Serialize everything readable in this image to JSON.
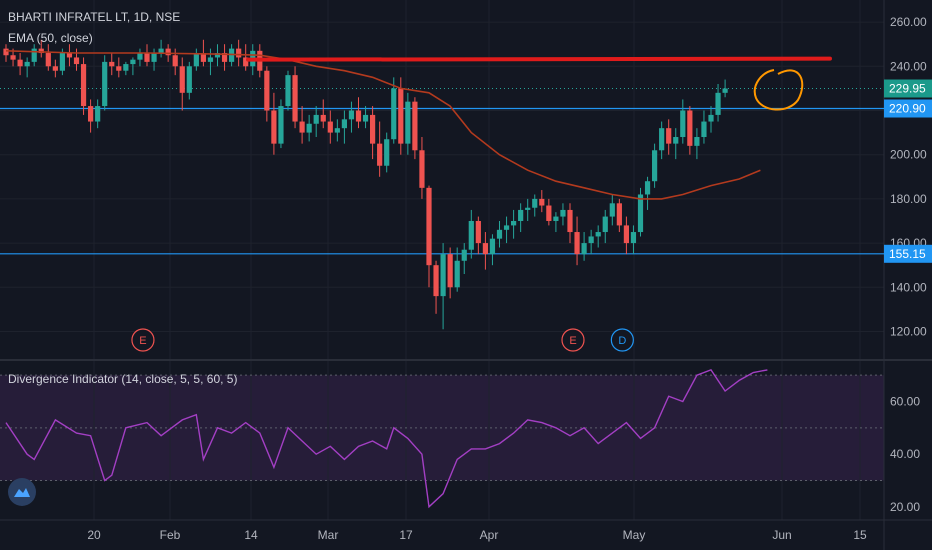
{
  "header": {
    "symbol_title": "BHARTI INFRATEL LT, 1D, NSE",
    "ema_label": "EMA (50, close)",
    "indicator_label": "Divergence Indicator (14, close, 5, 5, 60, 5)"
  },
  "colors": {
    "background": "#131722",
    "up_candle": "#26a69a",
    "down_candle": "#ef5350",
    "ema_line": "#b33a1e",
    "resistance_line": "#e01b1b",
    "horizontal_line": "#2196f3",
    "highlight_circle": "#ff9800",
    "rsi_line": "#a33fc4",
    "rsi_band": "#2a1e3d",
    "earnings_badge": "#ef5350",
    "dividend_badge": "#2196f3",
    "price_badge_last": "#1b9a8b",
    "price_badge_line": "#2196f3"
  },
  "price_axis": {
    "ticks": [
      "260.00",
      "240.00",
      "220.00",
      "200.00",
      "180.00",
      "160.00",
      "140.00",
      "120.00"
    ]
  },
  "price_badges": [
    {
      "label": "229.95",
      "value": 229.95,
      "style": "last"
    },
    {
      "label": "220.90",
      "value": 220.9,
      "style": "line"
    },
    {
      "label": "155.15",
      "value": 155.15,
      "style": "line"
    }
  ],
  "indicator_axis": {
    "ticks": [
      "60.00",
      "40.00",
      "20.00"
    ]
  },
  "time_axis": {
    "labels": [
      "20",
      "Feb",
      "14",
      "Mar",
      "17",
      "Apr",
      "May",
      "Jun",
      "15"
    ]
  },
  "events": [
    {
      "label": "E",
      "type": "earnings",
      "date_index": 19
    },
    {
      "label": "E",
      "type": "earnings",
      "date_index": 80
    },
    {
      "label": "D",
      "type": "dividend",
      "date_index": 87
    }
  ],
  "drawings": {
    "resistance_level": 243,
    "horizontal_lines": [
      220.9,
      155.15
    ]
  },
  "chart_data": {
    "type": "candlestick",
    "title": "BHARTI INFRATEL LT, 1D, NSE",
    "xlabel": "",
    "ylabel": "",
    "ylim": [
      108,
      270
    ],
    "indicator_ylim": [
      15,
      75
    ],
    "indicator_levels": [
      70,
      50,
      30
    ],
    "candles": [
      [
        248,
        250,
        242,
        245
      ],
      [
        245,
        248,
        240,
        243
      ],
      [
        243,
        246,
        236,
        240
      ],
      [
        240,
        244,
        235,
        242
      ],
      [
        242,
        250,
        240,
        248
      ],
      [
        248,
        252,
        244,
        246
      ],
      [
        246,
        250,
        238,
        240
      ],
      [
        240,
        243,
        235,
        238
      ],
      [
        238,
        248,
        236,
        246
      ],
      [
        246,
        250,
        240,
        244
      ],
      [
        244,
        248,
        238,
        241
      ],
      [
        241,
        244,
        218,
        222
      ],
      [
        222,
        225,
        210,
        215
      ],
      [
        215,
        225,
        212,
        222
      ],
      [
        222,
        245,
        220,
        242
      ],
      [
        242,
        246,
        236,
        240
      ],
      [
        240,
        244,
        235,
        238
      ],
      [
        238,
        242,
        236,
        241
      ],
      [
        241,
        244,
        236,
        243
      ],
      [
        243,
        248,
        240,
        246
      ],
      [
        246,
        250,
        240,
        242
      ],
      [
        242,
        248,
        238,
        246
      ],
      [
        246,
        252,
        244,
        248
      ],
      [
        248,
        250,
        242,
        245
      ],
      [
        245,
        248,
        236,
        240
      ],
      [
        240,
        244,
        220,
        228
      ],
      [
        228,
        242,
        225,
        240
      ],
      [
        240,
        248,
        238,
        246
      ],
      [
        246,
        252,
        240,
        242
      ],
      [
        242,
        248,
        236,
        244
      ],
      [
        244,
        250,
        240,
        246
      ],
      [
        246,
        250,
        238,
        242
      ],
      [
        242,
        250,
        240,
        248
      ],
      [
        248,
        252,
        240,
        244
      ],
      [
        244,
        250,
        238,
        240
      ],
      [
        240,
        250,
        236,
        247
      ],
      [
        247,
        250,
        235,
        238
      ],
      [
        238,
        240,
        215,
        220
      ],
      [
        220,
        228,
        200,
        205
      ],
      [
        205,
        225,
        203,
        222
      ],
      [
        222,
        238,
        220,
        236
      ],
      [
        236,
        240,
        212,
        215
      ],
      [
        215,
        222,
        205,
        210
      ],
      [
        210,
        218,
        206,
        214
      ],
      [
        214,
        222,
        208,
        218
      ],
      [
        218,
        225,
        212,
        215
      ],
      [
        215,
        220,
        205,
        210
      ],
      [
        210,
        216,
        206,
        212
      ],
      [
        212,
        220,
        205,
        216
      ],
      [
        216,
        224,
        210,
        220
      ],
      [
        220,
        226,
        212,
        215
      ],
      [
        215,
        222,
        212,
        218
      ],
      [
        218,
        222,
        198,
        205
      ],
      [
        205,
        215,
        190,
        195
      ],
      [
        195,
        210,
        192,
        207
      ],
      [
        207,
        235,
        205,
        230
      ],
      [
        230,
        235,
        200,
        205
      ],
      [
        205,
        228,
        200,
        224
      ],
      [
        224,
        226,
        198,
        202
      ],
      [
        202,
        208,
        180,
        185
      ],
      [
        185,
        186,
        140,
        150
      ],
      [
        150,
        152,
        128,
        136
      ],
      [
        136,
        160,
        121,
        155
      ],
      [
        155,
        158,
        135,
        140
      ],
      [
        140,
        158,
        138,
        152
      ],
      [
        152,
        160,
        146,
        157
      ],
      [
        157,
        175,
        153,
        170
      ],
      [
        170,
        172,
        155,
        160
      ],
      [
        160,
        165,
        148,
        155
      ],
      [
        155,
        164,
        150,
        162
      ],
      [
        162,
        170,
        158,
        166
      ],
      [
        166,
        172,
        160,
        168
      ],
      [
        168,
        175,
        162,
        170
      ],
      [
        170,
        178,
        165,
        175
      ],
      [
        175,
        180,
        170,
        176
      ],
      [
        176,
        182,
        172,
        180
      ],
      [
        180,
        184,
        174,
        177
      ],
      [
        177,
        180,
        168,
        170
      ],
      [
        170,
        174,
        165,
        172
      ],
      [
        172,
        178,
        168,
        175
      ],
      [
        175,
        178,
        160,
        165
      ],
      [
        165,
        172,
        150,
        155
      ],
      [
        155,
        165,
        152,
        160
      ],
      [
        160,
        166,
        155,
        163
      ],
      [
        163,
        168,
        158,
        165
      ],
      [
        165,
        175,
        160,
        172
      ],
      [
        172,
        182,
        168,
        178
      ],
      [
        178,
        180,
        165,
        168
      ],
      [
        168,
        172,
        155,
        160
      ],
      [
        160,
        168,
        155,
        165
      ],
      [
        165,
        185,
        163,
        182
      ],
      [
        182,
        190,
        175,
        188
      ],
      [
        188,
        205,
        185,
        202
      ],
      [
        202,
        215,
        198,
        212
      ],
      [
        212,
        216,
        200,
        205
      ],
      [
        205,
        212,
        198,
        208
      ],
      [
        208,
        225,
        205,
        220
      ],
      [
        220,
        222,
        200,
        204
      ],
      [
        204,
        212,
        198,
        208
      ],
      [
        208,
        220,
        205,
        215
      ],
      [
        215,
        222,
        210,
        218
      ],
      [
        218,
        232,
        215,
        228
      ],
      [
        228,
        234,
        226,
        229.95
      ]
    ],
    "ema": [
      [
        0,
        247
      ],
      [
        10,
        246
      ],
      [
        20,
        246
      ],
      [
        30,
        245.5
      ],
      [
        36,
        245
      ],
      [
        40,
        243
      ],
      [
        44,
        240
      ],
      [
        48,
        238
      ],
      [
        52,
        235
      ],
      [
        56,
        230
      ],
      [
        60,
        228
      ],
      [
        63,
        222
      ],
      [
        66,
        210
      ],
      [
        70,
        200
      ],
      [
        74,
        193
      ],
      [
        78,
        188
      ],
      [
        82,
        185
      ],
      [
        86,
        182
      ],
      [
        90,
        180
      ],
      [
        93,
        180
      ],
      [
        96,
        182
      ],
      [
        100,
        186
      ],
      [
        104,
        189
      ],
      [
        107,
        193
      ]
    ],
    "rsi": [
      [
        0,
        52
      ],
      [
        3,
        40
      ],
      [
        4,
        38
      ],
      [
        7,
        53
      ],
      [
        10,
        48
      ],
      [
        12,
        47
      ],
      [
        14,
        30
      ],
      [
        15,
        32
      ],
      [
        17,
        50
      ],
      [
        20,
        52
      ],
      [
        22,
        47
      ],
      [
        25,
        53
      ],
      [
        27,
        55
      ],
      [
        28,
        38
      ],
      [
        30,
        50
      ],
      [
        32,
        48
      ],
      [
        34,
        52
      ],
      [
        36,
        48
      ],
      [
        38,
        35
      ],
      [
        40,
        50
      ],
      [
        42,
        45
      ],
      [
        44,
        40
      ],
      [
        46,
        43
      ],
      [
        48,
        38
      ],
      [
        50,
        43
      ],
      [
        52,
        45
      ],
      [
        54,
        42
      ],
      [
        55,
        50
      ],
      [
        57,
        46
      ],
      [
        59,
        40
      ],
      [
        60,
        20
      ],
      [
        62,
        25
      ],
      [
        64,
        38
      ],
      [
        66,
        42
      ],
      [
        68,
        42
      ],
      [
        70,
        44
      ],
      [
        72,
        48
      ],
      [
        74,
        53
      ],
      [
        76,
        52
      ],
      [
        78,
        50
      ],
      [
        80,
        47
      ],
      [
        82,
        50
      ],
      [
        84,
        44
      ],
      [
        86,
        48
      ],
      [
        88,
        52
      ],
      [
        90,
        46
      ],
      [
        92,
        50
      ],
      [
        94,
        62
      ],
      [
        96,
        60
      ],
      [
        98,
        70
      ],
      [
        100,
        72
      ],
      [
        102,
        64
      ],
      [
        104,
        68
      ],
      [
        106,
        71
      ],
      [
        108,
        72
      ]
    ]
  }
}
